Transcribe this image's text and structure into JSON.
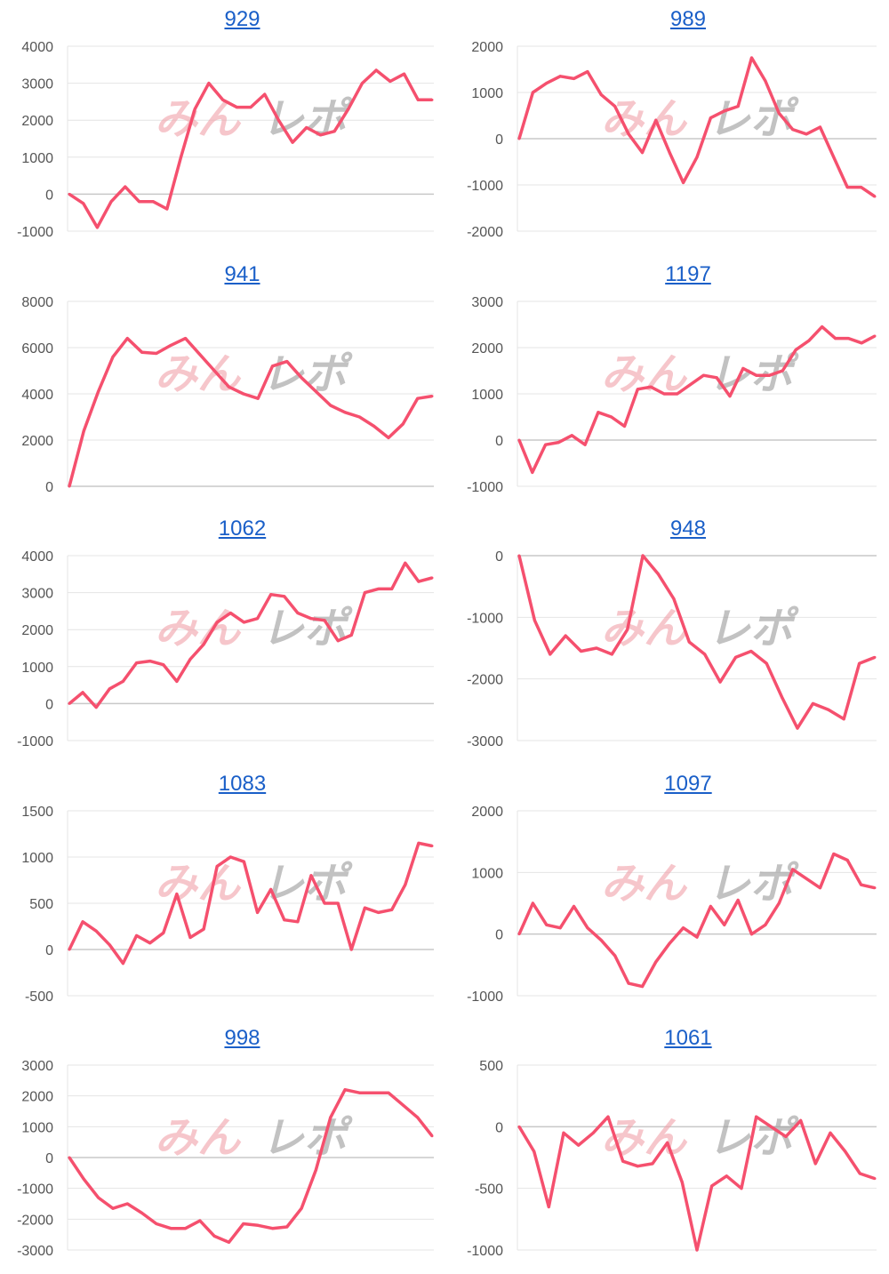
{
  "watermark": {
    "pink": "みん",
    "grey": "レポ"
  },
  "colors": {
    "line": "#f5506e",
    "grid": "#e4e4e4",
    "zero": "#c8c8c8",
    "title": "#1a5fc8",
    "tick": "#555555"
  },
  "chart_data": [
    {
      "type": "line",
      "title": "929",
      "ylim": [
        -1000,
        4000
      ],
      "yticks": [
        -1000,
        0,
        1000,
        2000,
        3000,
        4000
      ],
      "values": [
        0,
        -250,
        -900,
        -200,
        200,
        -200,
        -200,
        -400,
        1000,
        2300,
        3000,
        2550,
        2350,
        2350,
        2700,
        2000,
        1400,
        1800,
        1600,
        1700,
        2300,
        3000,
        3350,
        3050,
        3250,
        2550,
        2550
      ]
    },
    {
      "type": "line",
      "title": "989",
      "ylim": [
        -2000,
        2000
      ],
      "yticks": [
        -2000,
        -1000,
        0,
        1000,
        2000
      ],
      "values": [
        0,
        1000,
        1200,
        1350,
        1300,
        1450,
        950,
        700,
        100,
        -300,
        400,
        -300,
        -950,
        -400,
        450,
        600,
        700,
        1750,
        1250,
        550,
        200,
        100,
        250,
        -400,
        -1050,
        -1050,
        -1250
      ]
    },
    {
      "type": "line",
      "title": "941",
      "ylim": [
        0,
        8000
      ],
      "yticks": [
        0,
        2000,
        4000,
        6000,
        8000
      ],
      "values": [
        0,
        2400,
        4100,
        5600,
        6400,
        5800,
        5750,
        6100,
        6400,
        5700,
        5000,
        4300,
        4000,
        3800,
        5200,
        5400,
        4700,
        4100,
        3500,
        3200,
        3000,
        2600,
        2100,
        2700,
        3800,
        3900
      ]
    },
    {
      "type": "line",
      "title": "1197",
      "ylim": [
        -1000,
        3000
      ],
      "yticks": [
        -1000,
        0,
        1000,
        2000,
        3000
      ],
      "values": [
        0,
        -700,
        -100,
        -50,
        100,
        -100,
        600,
        500,
        300,
        1100,
        1150,
        1000,
        1000,
        1200,
        1400,
        1350,
        950,
        1550,
        1400,
        1400,
        1500,
        1950,
        2150,
        2450,
        2200,
        2200,
        2100,
        2250
      ]
    },
    {
      "type": "line",
      "title": "1062",
      "ylim": [
        -1000,
        4000
      ],
      "yticks": [
        -1000,
        0,
        1000,
        2000,
        3000,
        4000
      ],
      "values": [
        0,
        300,
        -100,
        400,
        600,
        1100,
        1150,
        1050,
        600,
        1200,
        1600,
        2200,
        2450,
        2200,
        2300,
        2950,
        2900,
        2450,
        2300,
        2250,
        1700,
        1850,
        3000,
        3100,
        3100,
        3800,
        3300,
        3400
      ]
    },
    {
      "type": "line",
      "title": "948",
      "ylim": [
        -3000,
        0
      ],
      "yticks": [
        -3000,
        -2000,
        -1000,
        0
      ],
      "values": [
        0,
        -1050,
        -1600,
        -1300,
        -1550,
        -1500,
        -1600,
        -1200,
        0,
        -300,
        -700,
        -1400,
        -1600,
        -2050,
        -1650,
        -1550,
        -1750,
        -2300,
        -2800,
        -2400,
        -2500,
        -2650,
        -1750,
        -1650
      ]
    },
    {
      "type": "line",
      "title": "1083",
      "ylim": [
        -500,
        1500
      ],
      "yticks": [
        -500,
        0,
        500,
        1000,
        1500
      ],
      "values": [
        0,
        300,
        200,
        50,
        -150,
        150,
        70,
        180,
        600,
        130,
        220,
        900,
        1000,
        950,
        400,
        650,
        320,
        300,
        800,
        500,
        500,
        0,
        450,
        400,
        430,
        700,
        1150,
        1120
      ]
    },
    {
      "type": "line",
      "title": "1097",
      "ylim": [
        -1000,
        2000
      ],
      "yticks": [
        -1000,
        0,
        1000,
        2000
      ],
      "values": [
        0,
        500,
        150,
        100,
        450,
        100,
        -100,
        -350,
        -800,
        -850,
        -450,
        -150,
        100,
        -50,
        450,
        150,
        550,
        0,
        150,
        500,
        1050,
        900,
        750,
        1300,
        1200,
        800,
        750
      ]
    },
    {
      "type": "line",
      "title": "998",
      "ylim": [
        -3000,
        3000
      ],
      "yticks": [
        -3000,
        -2000,
        -1000,
        0,
        1000,
        2000,
        3000
      ],
      "values": [
        0,
        -700,
        -1300,
        -1650,
        -1500,
        -1800,
        -2150,
        -2300,
        -2300,
        -2050,
        -2550,
        -2750,
        -2150,
        -2200,
        -2300,
        -2250,
        -1650,
        -400,
        1300,
        2200,
        2100,
        2100,
        2100,
        1700,
        1300,
        700
      ]
    },
    {
      "type": "line",
      "title": "1061",
      "ylim": [
        -1000,
        500
      ],
      "yticks": [
        -1000,
        -500,
        0,
        500
      ],
      "values": [
        0,
        -200,
        -650,
        -50,
        -150,
        -50,
        80,
        -280,
        -320,
        -300,
        -130,
        -450,
        -1000,
        -480,
        -400,
        -500,
        80,
        0,
        -80,
        50,
        -300,
        -50,
        -200,
        -380,
        -420
      ]
    }
  ]
}
